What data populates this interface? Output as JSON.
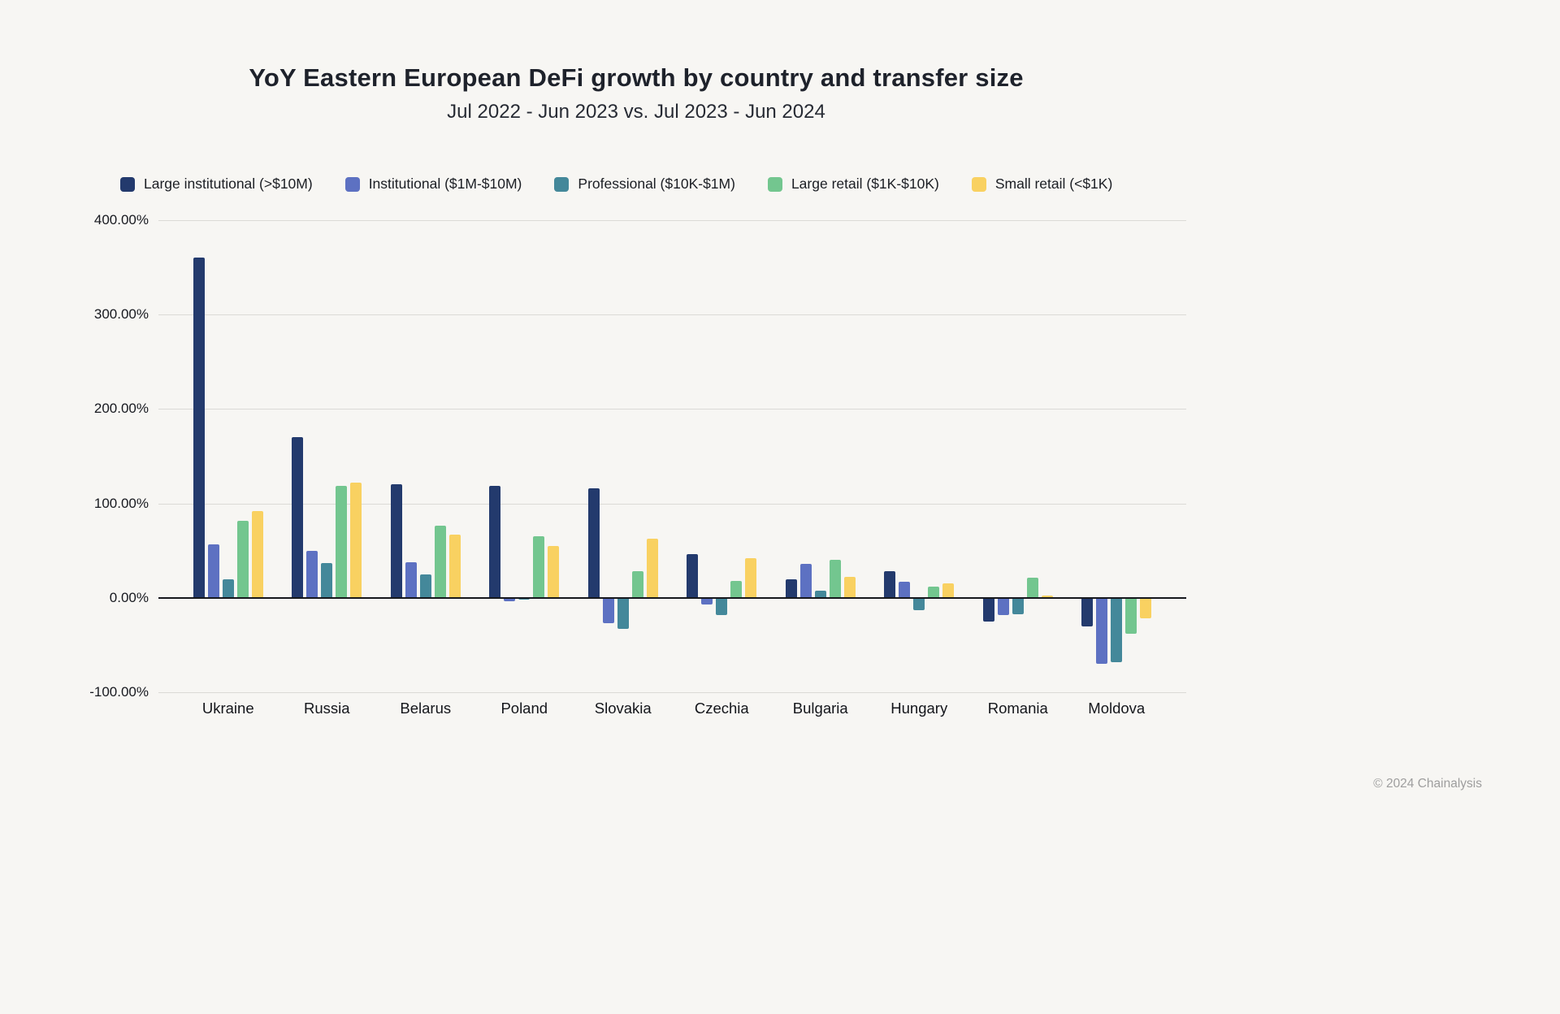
{
  "page": {
    "background": "#f7f6f3",
    "footer": "© 2024 Chainalysis"
  },
  "chart_data": {
    "type": "bar",
    "title": "YoY Eastern European DeFi growth by country and transfer size",
    "subtitle": "Jul 2022 - Jun 2023 vs. Jul 2023 - Jun 2024",
    "categories": [
      "Ukraine",
      "Russia",
      "Belarus",
      "Poland",
      "Slovakia",
      "Czechia",
      "Bulgaria",
      "Hungary",
      "Romania",
      "Moldova"
    ],
    "series": [
      {
        "name": "Large institutional (>$10M)",
        "color": "#233a6d",
        "values": [
          360,
          170,
          120,
          119,
          116,
          46,
          20,
          28,
          -25,
          -30
        ]
      },
      {
        "name": "Institutional ($1M-$10M)",
        "color": "#5d71c2",
        "values": [
          57,
          50,
          38,
          -4,
          -27,
          -7,
          36,
          17,
          -18,
          -70
        ]
      },
      {
        "name": "Professional ($10K-$1M)",
        "color": "#44889a",
        "values": [
          20,
          37,
          25,
          -2,
          -33,
          -18,
          8,
          -13,
          -17,
          -68
        ]
      },
      {
        "name": "Large retail ($1K-$10K)",
        "color": "#73c68f",
        "values": [
          82,
          119,
          76,
          65,
          28,
          18,
          40,
          12,
          21,
          -38
        ]
      },
      {
        "name": "Small retail (<$1K)",
        "color": "#f9d161",
        "values": [
          92,
          122,
          67,
          55,
          63,
          42,
          22,
          15,
          2,
          -22
        ]
      }
    ],
    "xlabel": "",
    "ylabel": "",
    "ylim": [
      -100,
      400
    ],
    "yticks": [
      400,
      300,
      200,
      100,
      0,
      -100
    ],
    "ytick_labels": [
      "400.00%",
      "300.00%",
      "200.00%",
      "100.00%",
      "0.00%",
      "-100.00%"
    ],
    "ytick_format": "0.00%",
    "grid": true,
    "legend_position": "top-left",
    "zero_line_color": "#16181d",
    "gridline_color": "#dbdad6"
  }
}
